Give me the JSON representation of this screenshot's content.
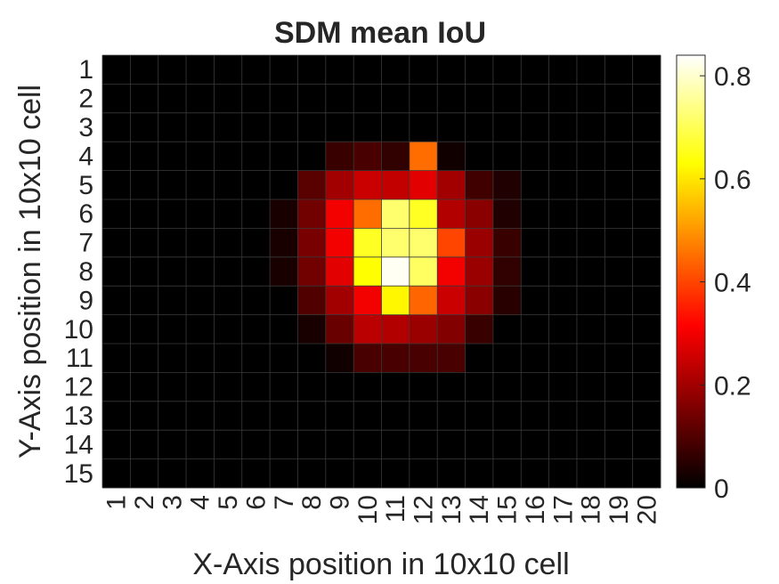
{
  "chart_data": {
    "type": "heatmap",
    "title": "SDM mean IoU",
    "xlabel": "X-Axis position in 10x10 cell",
    "ylabel": "Y-Axis position in 10x10 cell",
    "x_categories": [
      "1",
      "2",
      "3",
      "4",
      "5",
      "6",
      "7",
      "8",
      "9",
      "10",
      "11",
      "12",
      "13",
      "14",
      "15",
      "16",
      "17",
      "18",
      "19",
      "20"
    ],
    "y_categories": [
      "1",
      "2",
      "3",
      "4",
      "5",
      "6",
      "7",
      "8",
      "9",
      "10",
      "11",
      "12",
      "13",
      "14",
      "15"
    ],
    "colormap": "hot",
    "clim": [
      0,
      0.84
    ],
    "colorbar": {
      "ticks": [
        0,
        0.2,
        0.4,
        0.6,
        0.8
      ],
      "tick_labels": [
        "0",
        "0.2",
        "0.4",
        "0.6",
        "0.8"
      ]
    },
    "grid": true,
    "values": [
      [
        0,
        0,
        0,
        0,
        0,
        0,
        0,
        0,
        0,
        0,
        0,
        0,
        0,
        0,
        0,
        0,
        0,
        0,
        0,
        0
      ],
      [
        0,
        0,
        0,
        0,
        0,
        0,
        0,
        0,
        0,
        0,
        0,
        0,
        0,
        0,
        0,
        0,
        0,
        0,
        0,
        0
      ],
      [
        0,
        0,
        0,
        0,
        0,
        0,
        0,
        0,
        0,
        0,
        0,
        0,
        0,
        0,
        0,
        0,
        0,
        0,
        0,
        0
      ],
      [
        0,
        0,
        0,
        0,
        0,
        0,
        0,
        0,
        0.07,
        0.09,
        0.06,
        0.45,
        0.02,
        0,
        0,
        0,
        0,
        0,
        0,
        0
      ],
      [
        0,
        0,
        0,
        0,
        0,
        0,
        0,
        0.11,
        0.2,
        0.25,
        0.24,
        0.28,
        0.2,
        0.08,
        0.04,
        0,
        0,
        0,
        0,
        0
      ],
      [
        0,
        0,
        0,
        0,
        0,
        0,
        0.03,
        0.14,
        0.3,
        0.45,
        0.72,
        0.66,
        0.22,
        0.17,
        0.04,
        0,
        0,
        0,
        0,
        0
      ],
      [
        0,
        0,
        0,
        0,
        0,
        0,
        0.03,
        0.15,
        0.3,
        0.66,
        0.72,
        0.72,
        0.4,
        0.19,
        0.07,
        0,
        0,
        0,
        0,
        0
      ],
      [
        0,
        0,
        0,
        0,
        0,
        0,
        0.03,
        0.14,
        0.28,
        0.63,
        0.83,
        0.71,
        0.3,
        0.19,
        0.06,
        0,
        0,
        0,
        0,
        0
      ],
      [
        0,
        0,
        0,
        0,
        0,
        0,
        0,
        0.1,
        0.2,
        0.3,
        0.62,
        0.44,
        0.25,
        0.17,
        0.05,
        0,
        0,
        0,
        0,
        0
      ],
      [
        0,
        0,
        0,
        0,
        0,
        0,
        0,
        0.03,
        0.13,
        0.23,
        0.22,
        0.19,
        0.16,
        0.07,
        0,
        0,
        0,
        0,
        0,
        0
      ],
      [
        0,
        0,
        0,
        0,
        0,
        0,
        0,
        0,
        0.02,
        0.09,
        0.09,
        0.09,
        0.09,
        0,
        0,
        0,
        0,
        0,
        0,
        0
      ],
      [
        0,
        0,
        0,
        0,
        0,
        0,
        0,
        0,
        0,
        0,
        0,
        0,
        0,
        0,
        0,
        0,
        0,
        0,
        0,
        0
      ],
      [
        0,
        0,
        0,
        0,
        0,
        0,
        0,
        0,
        0,
        0,
        0,
        0,
        0,
        0,
        0,
        0,
        0,
        0,
        0,
        0
      ],
      [
        0,
        0,
        0,
        0,
        0,
        0,
        0,
        0,
        0,
        0,
        0,
        0,
        0,
        0,
        0,
        0,
        0,
        0,
        0,
        0
      ],
      [
        0,
        0,
        0,
        0,
        0,
        0,
        0,
        0,
        0,
        0,
        0,
        0,
        0,
        0,
        0,
        0,
        0,
        0,
        0,
        0
      ]
    ]
  }
}
